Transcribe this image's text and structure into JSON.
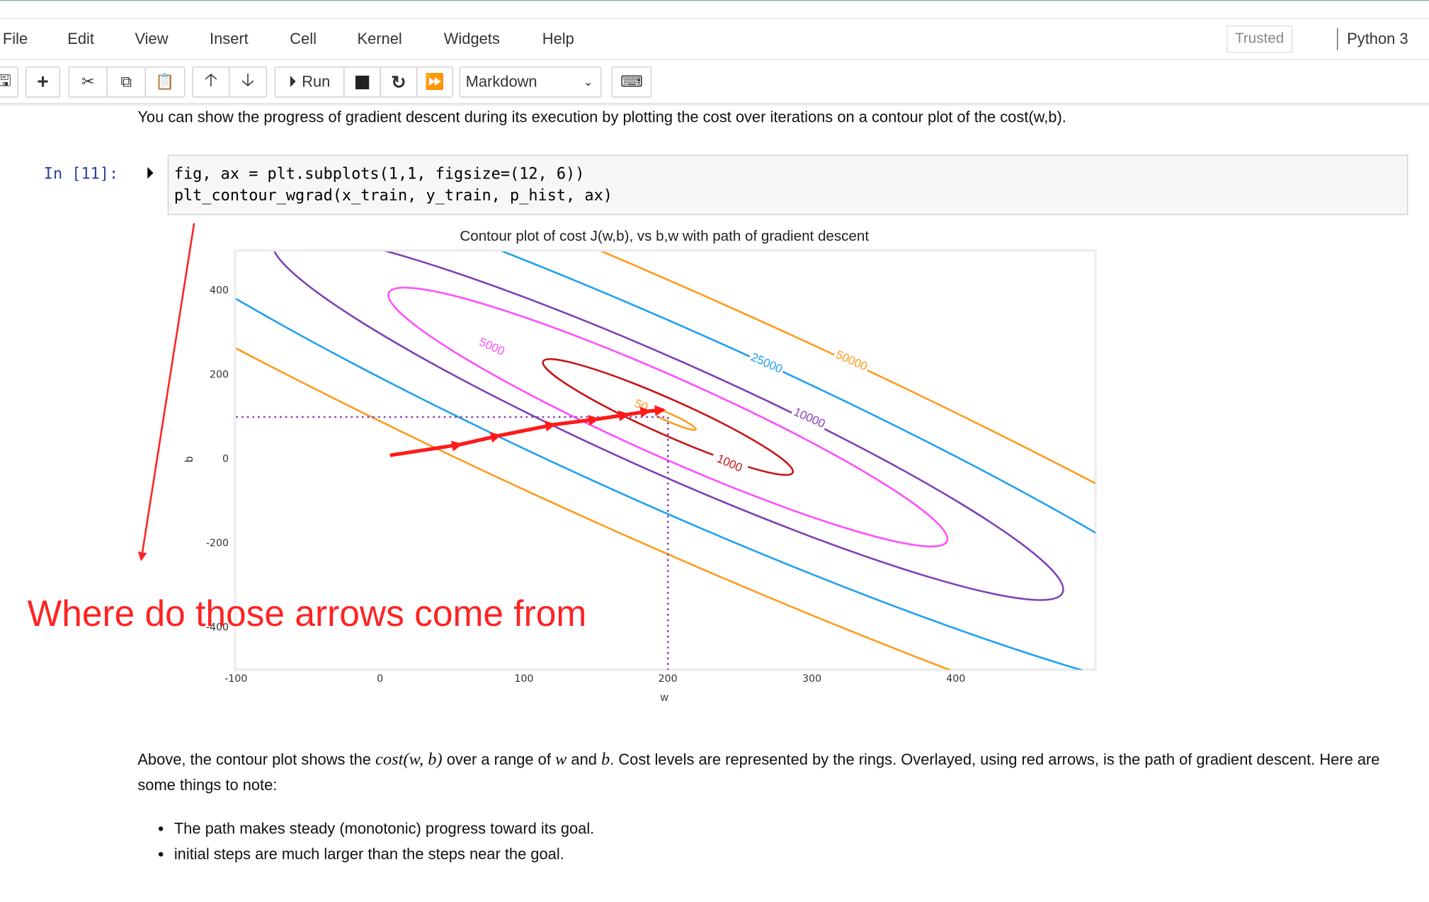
{
  "menu": [
    "File",
    "Edit",
    "View",
    "Insert",
    "Cell",
    "Kernel",
    "Widgets",
    "Help"
  ],
  "trusted": "Trusted",
  "kernel": "Python 3",
  "toolbar": {
    "run": "Run",
    "cell_type": "Markdown"
  },
  "intro": "You can show the progress of gradient descent during its execution by plotting the cost over iterations on a contour plot of the cost(w,b).",
  "cell": {
    "prompt": "In [11]:",
    "code": [
      "fig, ax = plt.subplots(1,1, figsize=(12, 6))",
      "plt_contour_wgrad(x_train, y_train, p_hist, ax)"
    ]
  },
  "chart_data": {
    "type": "contour",
    "title": "Contour plot of cost J(w,b), vs b,w with path of gradient descent",
    "x_label": "w",
    "y_label": "b",
    "xlim": [
      -100,
      497
    ],
    "ylim": [
      -500,
      493
    ],
    "xticks": [
      -100,
      0,
      100,
      200,
      300,
      400
    ],
    "yticks": [
      -400,
      -200,
      0,
      200,
      400
    ],
    "levels": [
      50,
      1000,
      5000,
      10000,
      25000,
      50000
    ],
    "level_colors": [
      "#ff9a1a",
      "#c81414",
      "#ff4dff",
      "#7e3fb4",
      "#1fa0f0",
      "#ff9a1a"
    ],
    "x": [
      7,
      56,
      83,
      121,
      151,
      172,
      187,
      197
    ],
    "values": [
      9,
      35,
      56,
      82,
      95,
      106,
      114,
      117
    ],
    "path_color": "#ff1a1a",
    "vline": 200,
    "hline": 100,
    "guide_color": "#7e3fb4"
  },
  "annotation": "Where do those arrows come from",
  "explanation": [
    "Above, the contour plot shows the ",
    "cost(w, b)",
    " over a range of ",
    "w",
    " and ",
    "b",
    ". Cost levels are represented by the rings. Overlayed, using red arrows, is the path of gradient descent. Here are some things to note:"
  ],
  "bullets": [
    "The path makes steady (monotonic) progress toward its goal.",
    "initial steps are much larger than the steps near the goal."
  ]
}
